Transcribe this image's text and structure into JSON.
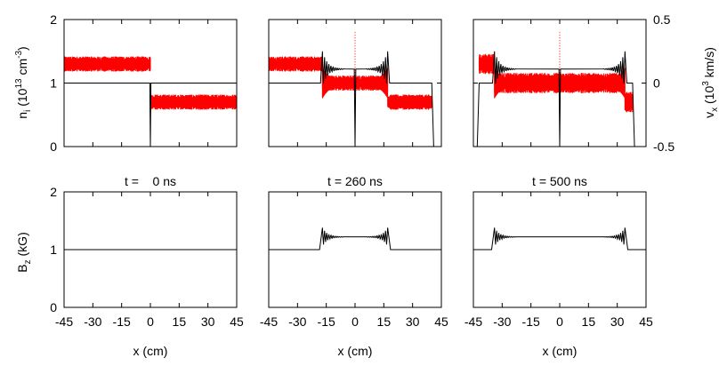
{
  "chart_data": {
    "type": "line",
    "x_tick_labels": [
      "-45",
      "-30",
      "-15",
      "0",
      "15",
      "30",
      "45"
    ],
    "x_ticks": [
      -45,
      -30,
      -15,
      0,
      15,
      30,
      45
    ],
    "xlim": [
      -45,
      45
    ],
    "xlabel": "x (cm)",
    "top_row": {
      "ylabel_left": {
        "base": "n",
        "sub": "i",
        "rest1": " (10",
        "sup": "13",
        "rest2": " cm",
        "sup2": "-3",
        "rest3": ")"
      },
      "ylabel_right": {
        "base": "v",
        "sub": "x",
        "rest1": " (10",
        "sup": "3",
        "rest2": " km/s)"
      },
      "ylim_left": [
        0,
        2
      ],
      "yticks_left": [
        "0",
        "1",
        "2"
      ],
      "ylim_right": [
        -0.5,
        0.5
      ],
      "yticks_right": [
        "-0.5",
        "0",
        "0.5"
      ]
    },
    "bottom_row": {
      "ylabel": {
        "base": "B",
        "sub": "z",
        "rest": " (kG)"
      },
      "ylim": [
        0,
        2
      ],
      "yticks": [
        "0",
        "1",
        "2"
      ]
    },
    "panels": [
      {
        "time_label": "t =    0 ns",
        "density": {
          "plasma_edges": [
            -45,
            45
          ],
          "n": 1.0
        },
        "velocity": {
          "segments": [
            [
              -45,
              0,
              0.15
            ],
            [
              0,
              45,
              -0.15
            ]
          ],
          "noise": 0.03
        },
        "field": {
          "B0": 1.0,
          "Bmax": 1.0,
          "pulse_edge": 0
        }
      },
      {
        "time_label": "t = 260 ns",
        "density": {
          "plasma_edges": [
            -45,
            40
          ],
          "n": 1.0,
          "compressed": 1.22,
          "pulse_edge": 17
        },
        "velocity": {
          "segments": [
            [
              -45,
              -17,
              0.15
            ],
            [
              -17,
              17,
              0.0
            ],
            [
              17,
              40,
              -0.15
            ]
          ],
          "noise": 0.03
        },
        "field": {
          "B0": 1.0,
          "Bmax": 1.22,
          "pulse_edge": 17
        }
      },
      {
        "time_label": "t = 500 ns",
        "density": {
          "plasma_edges": [
            -42,
            38
          ],
          "n": 1.0,
          "compressed": 1.22,
          "pulse_edge": 34
        },
        "velocity": {
          "segments": [
            [
              -42,
              -34,
              0.15
            ],
            [
              -34,
              34,
              0.0
            ],
            [
              34,
              38,
              -0.15
            ]
          ],
          "noise": 0.04
        },
        "field": {
          "B0": 1.0,
          "Bmax": 1.22,
          "pulse_edge": 34
        }
      }
    ]
  }
}
